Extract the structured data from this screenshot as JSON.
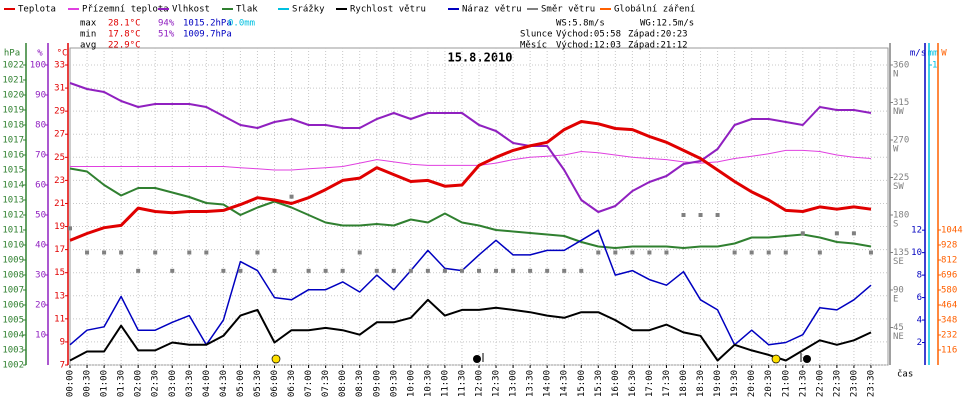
{
  "chart_data": {
    "type": "line",
    "title": "15.8.2010",
    "stats": {
      "max": [
        "max",
        "28.1°C",
        "94%",
        "1015.2hPa",
        "0.0mm"
      ],
      "min": [
        "min",
        "17.8°C",
        "51%",
        "1009.7hPa"
      ],
      "avg": [
        "avg",
        "22.9°C"
      ]
    },
    "info": {
      "ws": "WS:5.8m/s",
      "wg": "WG:12.5m/s",
      "sun": [
        "Slunce",
        "Východ:05:58",
        "Západ:20:23"
      ],
      "moon": [
        "Měsíc",
        "Východ:12:03",
        "Západ:21:12"
      ]
    },
    "x_label": "čas",
    "categories": [
      "00:00",
      "00:30",
      "01:00",
      "01:30",
      "02:00",
      "02:30",
      "03:00",
      "03:30",
      "04:00",
      "04:30",
      "05:00",
      "05:30",
      "06:00",
      "06:30",
      "07:00",
      "07:30",
      "08:00",
      "08:30",
      "09:00",
      "09:30",
      "10:00",
      "10:30",
      "11:00",
      "11:30",
      "12:00",
      "12:30",
      "13:00",
      "13:30",
      "14:00",
      "14:30",
      "15:00",
      "15:30",
      "16:00",
      "16:30",
      "17:00",
      "17:30",
      "18:00",
      "18:30",
      "19:00",
      "19:30",
      "20:00",
      "20:30",
      "21:00",
      "21:30",
      "22:00",
      "22:30",
      "23:00",
      "23:30"
    ],
    "y_label": "°C",
    "ylim": [
      7,
      33
    ],
    "yticks": [
      7,
      9,
      11,
      13,
      15,
      17,
      19,
      21,
      23,
      25,
      27,
      29,
      31,
      33
    ],
    "pct_label": "%",
    "pct_lim": [
      0,
      100
    ],
    "pct_ticks": [
      10,
      20,
      30,
      40,
      50,
      60,
      70,
      80,
      90,
      100
    ],
    "hpa_label": "hPa",
    "hpa_lim": [
      1002,
      1022
    ],
    "hpa_ticks": [
      1002,
      1003,
      1004,
      1005,
      1006,
      1007,
      1008,
      1009,
      1010,
      1011,
      1012,
      1013,
      1014,
      1015,
      1016,
      1017,
      1018,
      1019,
      1020,
      1021,
      1022
    ],
    "dir_lim": [
      0,
      360
    ],
    "dir_ticks": [
      45,
      90,
      135,
      180,
      225,
      270,
      315,
      360
    ],
    "dir_labels": [
      "NE",
      "E",
      "SE",
      "S",
      "SW",
      "W",
      "NW",
      "N"
    ],
    "wind_label": "m/s",
    "wind_lim": [
      0,
      26.7
    ],
    "wind_ticks": [
      2,
      4,
      6,
      8,
      10,
      12
    ],
    "mm_label": "mm",
    "mm_lim": [
      0,
      1
    ],
    "mm_ticks": [
      1
    ],
    "solar_label": "W",
    "solar_lim": [
      0,
      2320
    ],
    "solar_ticks": [
      116,
      232,
      348,
      464,
      580,
      696,
      812,
      928,
      1044
    ],
    "grid": true,
    "series": [
      {
        "name": "Teplota",
        "color": "#e00000",
        "axis": "y",
        "width": 3,
        "values": [
          17.8,
          18.4,
          18.9,
          19.1,
          20.6,
          20.3,
          20.2,
          20.3,
          20.3,
          20.4,
          20.9,
          21.5,
          21.3,
          21.0,
          21.5,
          22.2,
          23.0,
          23.2,
          24.1,
          23.5,
          22.9,
          23.0,
          22.5,
          22.6,
          24.3,
          25.0,
          25.6,
          26.0,
          26.3,
          27.4,
          28.1,
          27.9,
          27.5,
          27.4,
          26.8,
          26.3,
          25.6,
          24.9,
          23.9,
          22.9,
          22.0,
          21.3,
          20.4,
          20.3,
          20.7,
          20.5,
          20.7,
          20.5
        ]
      },
      {
        "name": "Přízemní teplota",
        "color": "#e040e0",
        "axis": "y",
        "width": 1,
        "values": [
          24.2,
          24.2,
          24.2,
          24.2,
          24.2,
          24.2,
          24.2,
          24.2,
          24.2,
          24.2,
          24.1,
          24.0,
          23.9,
          23.9,
          24.0,
          24.1,
          24.2,
          24.5,
          24.8,
          24.6,
          24.4,
          24.3,
          24.3,
          24.3,
          24.3,
          24.5,
          24.8,
          25.0,
          25.1,
          25.2,
          25.5,
          25.4,
          25.2,
          25.0,
          24.9,
          24.8,
          24.6,
          24.5,
          24.6,
          24.9,
          25.1,
          25.3,
          25.6,
          25.6,
          25.5,
          25.2,
          25.0,
          24.9
        ]
      },
      {
        "name": "Vlhkost",
        "color": "#9020c0",
        "axis": "pct",
        "width": 2,
        "values": [
          94,
          92,
          91,
          88,
          86,
          87,
          87,
          87,
          86,
          83,
          80,
          79,
          81,
          82,
          80,
          80,
          79,
          79,
          82,
          84,
          82,
          84,
          84,
          84,
          80,
          78,
          74,
          73,
          73,
          65,
          55,
          51,
          53,
          58,
          61,
          63,
          67,
          68,
          72,
          80,
          82,
          82,
          81,
          80,
          86,
          85,
          85,
          84
        ]
      },
      {
        "name": "Tlak",
        "color": "#308030",
        "axis": "hpa",
        "width": 2,
        "values": [
          1015.1,
          1014.9,
          1014.0,
          1013.3,
          1013.8,
          1013.8,
          1013.5,
          1013.2,
          1012.8,
          1012.7,
          1012.0,
          1012.5,
          1012.9,
          1012.5,
          1012.0,
          1011.5,
          1011.3,
          1011.3,
          1011.4,
          1011.3,
          1011.7,
          1011.5,
          1012.1,
          1011.5,
          1011.3,
          1011.0,
          1010.9,
          1010.8,
          1010.7,
          1010.6,
          1010.2,
          1009.9,
          1009.8,
          1009.9,
          1009.9,
          1009.9,
          1009.8,
          1009.9,
          1009.9,
          1010.1,
          1010.5,
          1010.5,
          1010.6,
          1010.7,
          1010.5,
          1010.2,
          1010.1,
          1009.9
        ]
      },
      {
        "name": "Srážky",
        "color": "#00c0e0",
        "axis": "mm"
      },
      {
        "name": "Rychlost větru",
        "color": "#000000",
        "axis": "wind",
        "width": 2,
        "values": [
          0.4,
          1.2,
          1.2,
          3.5,
          1.3,
          1.3,
          2.0,
          1.8,
          1.8,
          2.6,
          4.4,
          4.9,
          2.0,
          3.1,
          3.1,
          3.3,
          3.1,
          2.7,
          3.8,
          3.8,
          4.2,
          5.8,
          4.4,
          4.9,
          4.9,
          5.1,
          4.9,
          4.7,
          4.4,
          4.2,
          4.7,
          4.7,
          4.0,
          3.1,
          3.1,
          3.6,
          2.9,
          2.6,
          0.4,
          1.8,
          1.3,
          0.9,
          0.4,
          1.3,
          2.2,
          1.8,
          2.2,
          2.9
        ]
      },
      {
        "name": "Náraz větru",
        "color": "#0000c0",
        "axis": "wind",
        "width": 1.5,
        "values": [
          1.8,
          3.1,
          3.4,
          6.1,
          3.1,
          3.1,
          3.8,
          4.4,
          1.8,
          4.0,
          9.2,
          8.4,
          6.0,
          5.8,
          6.7,
          6.7,
          7.4,
          6.5,
          8.0,
          6.7,
          8.4,
          10.2,
          8.6,
          8.4,
          9.8,
          11.1,
          9.8,
          9.8,
          10.2,
          10.2,
          11.1,
          12.0,
          8.0,
          8.4,
          7.6,
          7.1,
          8.3,
          5.8,
          4.9,
          1.8,
          3.1,
          1.8,
          2.0,
          2.7,
          5.1,
          4.9,
          5.8,
          7.1
        ]
      },
      {
        "name": "Směr větru",
        "color": "#808080",
        "axis": "dir",
        "marker": "square",
        "values": [
          164,
          135,
          135,
          135,
          113,
          135,
          113,
          135,
          135,
          113,
          113,
          135,
          113,
          202,
          113,
          113,
          113,
          135,
          113,
          113,
          113,
          113,
          113,
          113,
          113,
          113,
          113,
          113,
          113,
          113,
          113,
          135,
          135,
          135,
          135,
          135,
          180,
          180,
          180,
          135,
          135,
          135,
          135,
          158,
          135,
          158,
          158,
          135
        ]
      },
      {
        "name": "Globální záření",
        "color": "#ff6000",
        "axis": "solar"
      }
    ]
  }
}
